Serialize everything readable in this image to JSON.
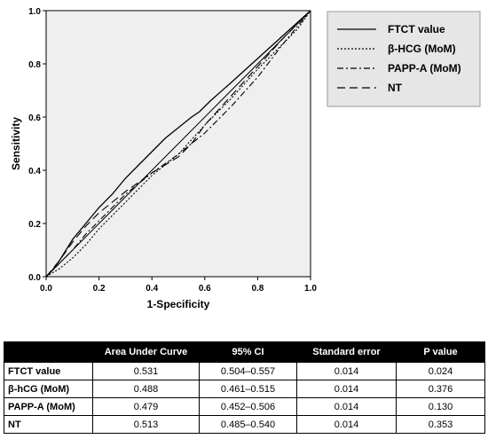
{
  "chart_data": {
    "type": "line",
    "xlabel": "1-Specificity",
    "ylabel": "Sensitivity",
    "xlim": [
      0.0,
      1.0
    ],
    "ylim": [
      0.0,
      1.0
    ],
    "x_ticks": [
      "0.0",
      "0.2",
      "0.4",
      "0.6",
      "0.8",
      "1.0"
    ],
    "y_ticks": [
      "0.0",
      "0.2",
      "0.4",
      "0.6",
      "0.8",
      "1.0"
    ],
    "grid": false,
    "legend_position": "top-right",
    "colors": {
      "plot_background": "#efefef",
      "legend_background": "#e6e6e6",
      "lines": "#000000"
    },
    "series": [
      {
        "name": "FTCT value",
        "dash": "solid",
        "x": [
          0.0,
          0.02,
          0.05,
          0.1,
          0.15,
          0.2,
          0.25,
          0.3,
          0.35,
          0.4,
          0.45,
          0.5,
          0.55,
          0.58,
          0.62,
          0.7,
          0.8,
          0.9,
          1.0
        ],
        "y": [
          0.0,
          0.02,
          0.06,
          0.14,
          0.2,
          0.26,
          0.31,
          0.37,
          0.42,
          0.47,
          0.52,
          0.56,
          0.6,
          0.62,
          0.66,
          0.73,
          0.82,
          0.91,
          1.0
        ]
      },
      {
        "name": "β-HCG (MoM)",
        "dash": "dotted",
        "x": [
          0.0,
          0.05,
          0.1,
          0.15,
          0.2,
          0.3,
          0.4,
          0.5,
          0.6,
          0.7,
          0.8,
          0.9,
          0.95,
          1.0
        ],
        "y": [
          0.0,
          0.03,
          0.07,
          0.12,
          0.18,
          0.28,
          0.38,
          0.46,
          0.57,
          0.67,
          0.78,
          0.88,
          0.93,
          1.0
        ]
      },
      {
        "name": "PAPP-A (MoM)",
        "dash": "dashdot",
        "x": [
          0.0,
          0.05,
          0.1,
          0.15,
          0.2,
          0.25,
          0.3,
          0.4,
          0.5,
          0.6,
          0.7,
          0.8,
          0.9,
          1.0
        ],
        "y": [
          0.0,
          0.05,
          0.1,
          0.16,
          0.21,
          0.26,
          0.31,
          0.39,
          0.46,
          0.54,
          0.64,
          0.75,
          0.88,
          1.0
        ]
      },
      {
        "name": "NT",
        "dash": "longdash",
        "x": [
          0.0,
          0.05,
          0.1,
          0.15,
          0.2,
          0.3,
          0.4,
          0.5,
          0.55,
          0.6,
          0.7,
          0.8,
          0.9,
          1.0
        ],
        "y": [
          0.0,
          0.06,
          0.13,
          0.19,
          0.24,
          0.32,
          0.39,
          0.45,
          0.5,
          0.57,
          0.68,
          0.79,
          0.9,
          1.0
        ]
      }
    ]
  },
  "table": {
    "headers": [
      "",
      "Area Under Curve",
      "95% CI",
      "Standard error",
      "P value"
    ],
    "rows": [
      [
        "FTCT value",
        "0.531",
        "0.504–0.557",
        "0.014",
        "0.024"
      ],
      [
        "β-hCG (MoM)",
        "0.488",
        "0.461–0.515",
        "0.014",
        "0.376"
      ],
      [
        "PAPP-A (MoM)",
        "0.479",
        "0.452–0.506",
        "0.014",
        "0.130"
      ],
      [
        "NT",
        "0.513",
        "0.485–0.540",
        "0.014",
        "0.353"
      ]
    ]
  }
}
